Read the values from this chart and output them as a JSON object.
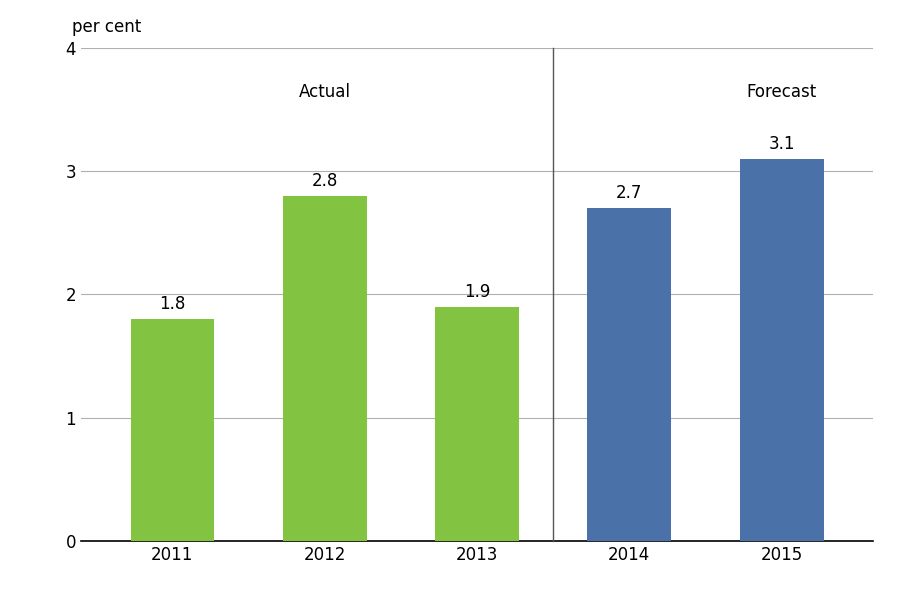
{
  "categories": [
    "2011",
    "2012",
    "2013",
    "2014",
    "2015"
  ],
  "values": [
    1.8,
    2.8,
    1.9,
    2.7,
    3.1
  ],
  "bar_colors": [
    "#82c341",
    "#82c341",
    "#82c341",
    "#4a72a8",
    "#4a72a8"
  ],
  "actual_label": "Actual",
  "forecast_label": "Forecast",
  "topleft_label": "per cent",
  "ylim": [
    0,
    4
  ],
  "yticks": [
    0,
    1,
    2,
    3,
    4
  ],
  "background_color": "#ffffff",
  "grid_color": "#b0b0b0",
  "label_fontsize": 12,
  "tick_fontsize": 12,
  "bar_label_fontsize": 12,
  "section_label_fontsize": 12
}
